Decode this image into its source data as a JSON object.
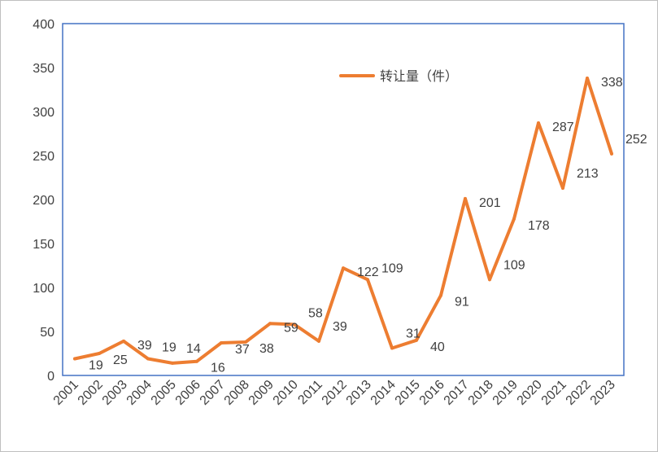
{
  "chart_data": {
    "type": "line",
    "title": "",
    "xlabel": "",
    "ylabel": "",
    "categories": [
      "2001",
      "2002",
      "2003",
      "2004",
      "2005",
      "2006",
      "2007",
      "2008",
      "2009",
      "2010",
      "2011",
      "2012",
      "2013",
      "2014",
      "2015",
      "2016",
      "2017",
      "2018",
      "2019",
      "2020",
      "2021",
      "2022",
      "2023"
    ],
    "series": [
      {
        "name": "转让量（件）",
        "color": "#ED7D31",
        "values": [
          19,
          25,
          39,
          19,
          14,
          16,
          37,
          38,
          59,
          58,
          39,
          122,
          109,
          31,
          40,
          91,
          201,
          109,
          178,
          287,
          213,
          338,
          252
        ]
      }
    ],
    "data_labels": [
      "19",
      "25",
      "39",
      "19",
      "14",
      "16",
      "37",
      "38",
      "59",
      "58",
      "39",
      "122",
      "109",
      "31",
      "40",
      "91",
      "201",
      "109",
      "178",
      "287",
      "213",
      "338",
      "252"
    ],
    "ylim": [
      0,
      400
    ],
    "yticks": [
      "0",
      "50",
      "100",
      "150",
      "200",
      "250",
      "300",
      "350",
      "400"
    ],
    "legend_position": "top-right",
    "grid": false,
    "axis_color": "#4472C4"
  }
}
